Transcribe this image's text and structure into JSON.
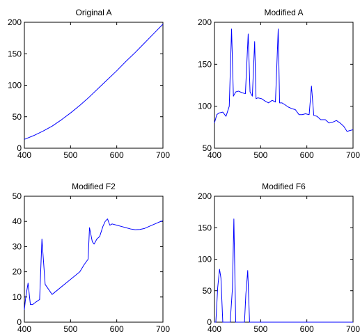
{
  "chart_data": [
    {
      "type": "line",
      "title": "Original A",
      "xlabel": "",
      "ylabel": "",
      "xlim": [
        400,
        700
      ],
      "ylim": [
        0,
        200
      ],
      "xticks": [
        400,
        500,
        600,
        700
      ],
      "yticks": [
        0,
        50,
        100,
        150,
        200
      ],
      "series": [
        {
          "x": [
            400,
            420,
            440,
            460,
            480,
            500,
            520,
            540,
            560,
            580,
            600,
            620,
            640,
            660,
            680,
            700
          ],
          "y": [
            14,
            20,
            27,
            35,
            45,
            56,
            68,
            81,
            95,
            109,
            123,
            138,
            152,
            167,
            182,
            197
          ]
        }
      ]
    },
    {
      "type": "line",
      "title": "Modified A",
      "xlabel": "",
      "ylabel": "",
      "xlim": [
        400,
        700
      ],
      "ylim": [
        50,
        200
      ],
      "xticks": [
        400,
        500,
        600,
        700
      ],
      "yticks": [
        50,
        100,
        150,
        200
      ],
      "series": [
        {
          "x": [
            400,
            405,
            410,
            418,
            425,
            432,
            437,
            441,
            446,
            452,
            460,
            467,
            473,
            477,
            482,
            487,
            490,
            494,
            502,
            510,
            517,
            525,
            532,
            538,
            541,
            546,
            552,
            560,
            568,
            575,
            583,
            590,
            597,
            605,
            610,
            615,
            622,
            630,
            640,
            648,
            656,
            664,
            672,
            680,
            687,
            693,
            700
          ],
          "y": [
            80,
            90,
            92,
            93,
            88,
            100,
            192,
            112,
            117,
            118,
            116,
            115,
            186,
            117,
            112,
            177,
            109,
            110,
            109,
            106,
            104,
            107,
            105,
            192,
            104,
            104,
            102,
            99,
            97,
            96,
            90,
            90,
            91,
            90,
            124,
            89,
            88,
            84,
            84,
            80,
            81,
            83,
            80,
            76,
            70,
            71,
            72
          ]
        }
      ]
    },
    {
      "type": "line",
      "title": "Modified F2",
      "xlabel": "",
      "ylabel": "",
      "xlim": [
        400,
        700
      ],
      "ylim": [
        0,
        50
      ],
      "xticks": [
        400,
        500,
        600,
        700
      ],
      "yticks": [
        0,
        10,
        20,
        30,
        40,
        50
      ],
      "series": [
        {
          "x": [
            400,
            403,
            408,
            413,
            418,
            425,
            433,
            438,
            445,
            460,
            480,
            500,
            520,
            530,
            538,
            541,
            547,
            551,
            557,
            563,
            570,
            575,
            580,
            585,
            590,
            600,
            610,
            620,
            630,
            640,
            650,
            660,
            670,
            680,
            690,
            700
          ],
          "y": [
            5,
            10,
            15.5,
            7,
            7,
            8,
            9,
            33,
            15,
            11,
            14,
            17,
            20,
            23,
            25,
            37.5,
            32,
            31,
            33,
            34,
            38,
            40,
            41,
            38.5,
            39,
            38.5,
            38,
            37.5,
            37,
            36.7,
            36.8,
            37.2,
            38,
            38.8,
            39.6,
            40.3
          ]
        }
      ]
    },
    {
      "type": "line",
      "title": "Modified F6",
      "xlabel": "",
      "ylabel": "",
      "xlim": [
        400,
        700
      ],
      "ylim": [
        0,
        200
      ],
      "xticks": [
        400,
        500,
        600,
        700
      ],
      "yticks": [
        0,
        50,
        100,
        150,
        200
      ],
      "series": [
        {
          "x": [
            400,
            403,
            407,
            411,
            414,
            418,
            428,
            434,
            439,
            442,
            446,
            451,
            461,
            465,
            468,
            472,
            476,
            481,
            700
          ],
          "y": [
            0,
            0,
            55,
            84,
            70,
            0,
            0,
            0,
            55,
            164,
            0,
            0,
            0,
            0,
            45,
            82,
            0,
            0,
            0
          ]
        }
      ]
    }
  ]
}
